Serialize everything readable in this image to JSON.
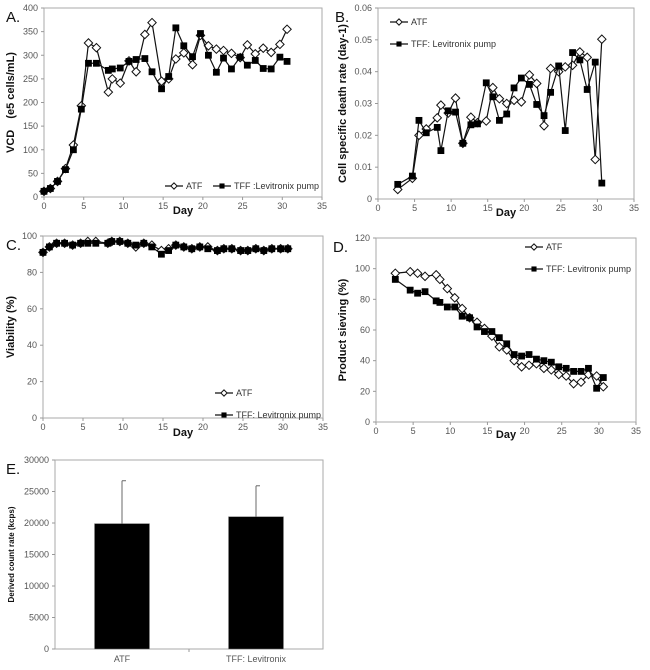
{
  "chart_data": [
    {
      "id": "A",
      "panel_label": "A.",
      "type": "line",
      "xlabel": "Day",
      "ylabel": "VCD (e5 cells/mL)",
      "ylabel_parts": [
        "VCD",
        "(e5 cells/mL)"
      ],
      "xlim": [
        0,
        35
      ],
      "ylim": [
        0,
        400
      ],
      "xticks": [
        "0",
        "5",
        "10",
        "15",
        "20",
        "25",
        "30",
        "35"
      ],
      "yticks": [
        "0",
        "50",
        "100",
        "150",
        "200",
        "250",
        "300",
        "350",
        "400"
      ],
      "legend_position": "bottom-right",
      "legend_layout": "row",
      "series": [
        {
          "name": "ATF",
          "marker": "diamond-open",
          "x": [
            0,
            0.8,
            1.7,
            2.7,
            3.7,
            4.7,
            5.6,
            6.6,
            8.1,
            8.6,
            9.6,
            10.7,
            11.6,
            12.7,
            13.6,
            14.8,
            15.7,
            16.6,
            17.6,
            18.7,
            19.7,
            20.7,
            21.7,
            22.6,
            23.6,
            24.7,
            25.6,
            26.6,
            27.6,
            28.6,
            29.7,
            30.6
          ],
          "y": [
            12,
            18,
            33,
            60,
            110,
            193,
            326,
            316,
            222,
            250,
            241,
            288,
            265,
            344,
            369,
            245,
            250,
            292,
            305,
            280,
            342,
            320,
            313,
            310,
            304,
            295,
            322,
            303,
            315,
            306,
            323,
            355
          ]
        },
        {
          "name": "TFF :Levitronix pump",
          "marker": "square-filled",
          "x": [
            0,
            0.8,
            1.7,
            2.7,
            3.7,
            4.7,
            5.6,
            6.6,
            8.1,
            8.6,
            9.6,
            10.7,
            11.6,
            12.7,
            13.6,
            14.8,
            15.7,
            16.6,
            17.6,
            18.7,
            19.7,
            20.7,
            21.7,
            22.6,
            23.6,
            24.7,
            25.6,
            26.6,
            27.6,
            28.6,
            29.7,
            30.6
          ],
          "y": [
            12,
            18,
            33,
            58,
            100,
            186,
            283,
            283,
            268,
            271,
            273,
            287,
            291,
            293,
            265,
            229,
            255,
            358,
            320,
            297,
            346,
            300,
            264,
            294,
            271,
            296,
            279,
            289,
            272,
            271,
            296,
            287
          ]
        }
      ]
    },
    {
      "id": "B",
      "panel_label": "B.",
      "type": "line",
      "xlabel": "Day",
      "ylabel": "Cell specific death rate (day-1)",
      "xlim": [
        0,
        35
      ],
      "ylim": [
        0,
        0.06
      ],
      "xticks": [
        "0",
        "5",
        "10",
        "15",
        "20",
        "25",
        "30",
        "35"
      ],
      "yticks": [
        "0",
        "0.01",
        "0.02",
        "0.03",
        "0.04",
        "0.05",
        "0.06"
      ],
      "legend_position": "top-left",
      "legend_layout": "column",
      "series": [
        {
          "name": "ATF",
          "marker": "diamond-open",
          "x": [
            2.7,
            4.7,
            5.6,
            6.6,
            8.1,
            8.6,
            9.6,
            10.6,
            11.6,
            12.7,
            13.6,
            14.8,
            15.7,
            16.6,
            17.6,
            18.6,
            19.6,
            20.7,
            21.7,
            22.7,
            23.6,
            24.7,
            25.6,
            26.6,
            27.6,
            28.6,
            29.7,
            30.6
          ],
          "y": [
            0.003,
            0.0065,
            0.02,
            0.022,
            0.0255,
            0.0295,
            0.027,
            0.0317,
            0.0175,
            0.0257,
            0.024,
            0.0245,
            0.035,
            0.0315,
            0.03,
            0.031,
            0.0305,
            0.039,
            0.0363,
            0.023,
            0.041,
            0.04,
            0.0415,
            0.042,
            0.0462,
            0.0445,
            0.0124,
            0.0502
          ]
        },
        {
          "name": "TFF: Levitronix pump",
          "marker": "square-filled",
          "x": [
            2.7,
            4.7,
            5.6,
            6.6,
            8.1,
            8.6,
            9.6,
            10.6,
            11.6,
            12.7,
            13.6,
            14.8,
            15.7,
            16.6,
            17.6,
            18.6,
            19.6,
            20.7,
            21.7,
            22.7,
            23.6,
            24.7,
            25.6,
            26.6,
            27.6,
            28.6,
            29.7,
            30.6
          ],
          "y": [
            0.0046,
            0.0072,
            0.0247,
            0.0208,
            0.0225,
            0.0152,
            0.0277,
            0.0273,
            0.0175,
            0.0233,
            0.0236,
            0.0365,
            0.0321,
            0.0247,
            0.0267,
            0.0349,
            0.038,
            0.036,
            0.0297,
            0.0262,
            0.0335,
            0.0418,
            0.0215,
            0.046,
            0.0437,
            0.0344,
            0.043,
            0.005
          ]
        }
      ]
    },
    {
      "id": "C",
      "panel_label": "C.",
      "type": "line",
      "xlabel": "Day",
      "ylabel": "Viability (%)",
      "xlim": [
        0,
        35
      ],
      "ylim": [
        0,
        100
      ],
      "xticks": [
        "0",
        "5",
        "10",
        "15",
        "20",
        "25",
        "30",
        "35"
      ],
      "yticks": [
        "0",
        "20",
        "40",
        "60",
        "80",
        "100"
      ],
      "legend_position": "bottom-right",
      "legend_layout": "column",
      "series": [
        {
          "name": "ATF",
          "marker": "diamond-open",
          "x": [
            0,
            0.8,
            1.7,
            2.7,
            3.7,
            4.7,
            5.6,
            6.6,
            8.1,
            8.6,
            9.6,
            10.6,
            11.6,
            12.6,
            13.6,
            14.8,
            15.7,
            16.6,
            17.6,
            18.6,
            19.6,
            20.6,
            21.8,
            22.6,
            23.6,
            24.7,
            25.6,
            26.6,
            27.6,
            28.6,
            29.7,
            30.6
          ],
          "y": [
            91,
            94,
            96,
            96,
            95,
            96,
            97,
            97,
            96,
            97,
            97,
            96,
            94,
            96,
            95,
            92,
            93,
            95,
            94,
            93,
            94,
            94,
            92,
            93,
            93,
            92,
            92,
            93,
            92,
            93,
            93,
            93
          ]
        },
        {
          "name": "TFF: Levitronix pump",
          "marker": "square-filled",
          "x": [
            0,
            0.8,
            1.7,
            2.7,
            3.7,
            4.7,
            5.6,
            6.6,
            8.1,
            8.6,
            9.6,
            10.6,
            11.6,
            12.6,
            13.6,
            14.8,
            15.7,
            16.6,
            17.6,
            18.6,
            19.6,
            20.6,
            21.8,
            22.6,
            23.6,
            24.7,
            25.6,
            26.6,
            27.6,
            28.6,
            29.7,
            30.6
          ],
          "y": [
            91,
            94,
            96,
            96,
            95,
            96,
            96,
            96,
            96,
            97,
            97,
            96,
            95,
            96,
            94,
            90,
            92,
            95,
            94,
            93,
            94,
            93,
            92,
            93,
            93,
            92,
            92,
            93,
            92,
            93,
            93,
            93
          ]
        }
      ]
    },
    {
      "id": "D",
      "panel_label": "D.",
      "type": "line",
      "xlabel": "Day",
      "ylabel": "Product sieving (%)",
      "xlim": [
        0,
        35
      ],
      "ylim": [
        0,
        120
      ],
      "xticks": [
        "0",
        "5",
        "10",
        "15",
        "20",
        "25",
        "30",
        "35"
      ],
      "yticks": [
        "0",
        "20",
        "40",
        "60",
        "80",
        "100",
        "120"
      ],
      "legend_position": "top-right",
      "legend_layout": "column",
      "series": [
        {
          "name": "ATF",
          "marker": "diamond-open",
          "x": [
            2.6,
            4.6,
            5.6,
            6.6,
            8.1,
            8.6,
            9.6,
            10.6,
            11.6,
            12.6,
            13.6,
            14.6,
            15.6,
            16.6,
            17.6,
            18.6,
            19.6,
            20.6,
            21.6,
            22.6,
            23.6,
            24.6,
            25.6,
            26.6,
            27.6,
            28.6,
            29.7,
            30.6
          ],
          "y": [
            97,
            98,
            97,
            95,
            96,
            93,
            87,
            81,
            74,
            68,
            65,
            61,
            56,
            49,
            47,
            40,
            36,
            37,
            38,
            35,
            34,
            31,
            30,
            25,
            26,
            31,
            30,
            23
          ]
        },
        {
          "name": "TFF: Levitronix pump",
          "marker": "square-filled",
          "x": [
            2.6,
            4.6,
            5.6,
            6.6,
            8.1,
            8.6,
            9.6,
            10.6,
            11.6,
            12.6,
            13.6,
            14.6,
            15.6,
            16.6,
            17.6,
            18.6,
            19.6,
            20.6,
            21.6,
            22.6,
            23.6,
            24.6,
            25.6,
            26.6,
            27.6,
            28.6,
            29.7,
            30.6
          ],
          "y": [
            93,
            86,
            84,
            85,
            79,
            78,
            75,
            75,
            69,
            68,
            62,
            59,
            59,
            55,
            51,
            44,
            43,
            44,
            41,
            40,
            39,
            36,
            35,
            33,
            33,
            35,
            22,
            29
          ]
        }
      ]
    },
    {
      "id": "E",
      "panel_label": "E.",
      "type": "bar",
      "xlabel": "",
      "ylabel": "Derived count rate (kcps)",
      "ylim": [
        0,
        30000
      ],
      "yticks": [
        "0",
        "5000",
        "10000",
        "15000",
        "20000",
        "25000",
        "30000"
      ],
      "categories": [
        "ATF",
        "TFF: Levitronix"
      ],
      "values": [
        19900,
        21000
      ],
      "error_upper": [
        26700,
        25900
      ],
      "bar_color": "#000000"
    }
  ]
}
